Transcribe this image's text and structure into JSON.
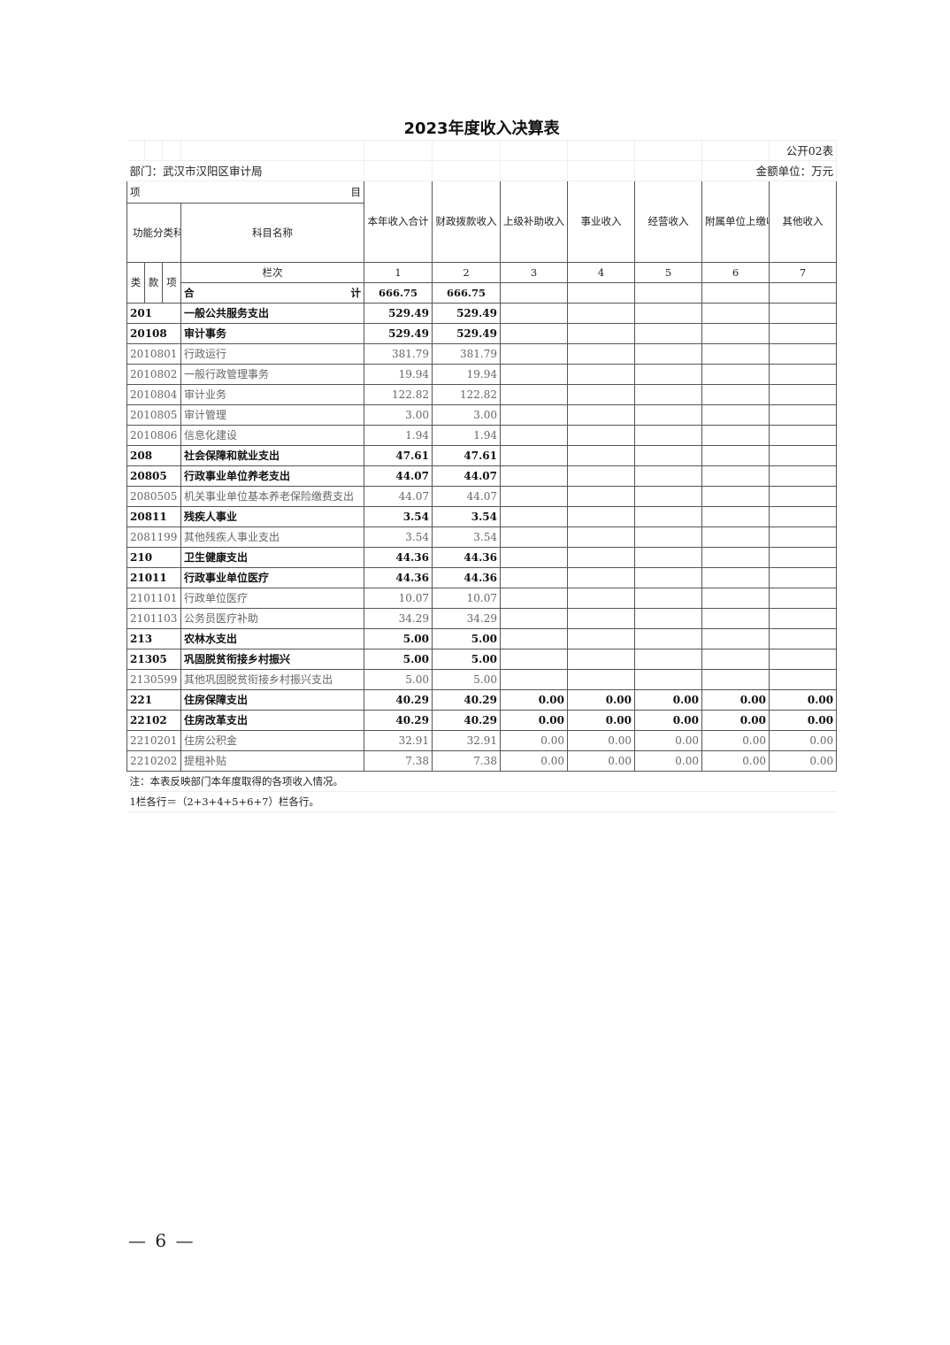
{
  "title": "2023年度收入决算表",
  "form_no": "公开02表",
  "department": "部门：武汉市汉阳区审计局",
  "unit": "金额单位：万元",
  "header": {
    "item_left": "项",
    "item_right": "目",
    "func_code": "功能分类科目编码",
    "subject_name": "科目名称",
    "columns": [
      "本年收入合计",
      "财政拨款收入",
      "上级补助收入",
      "事业收入",
      "经营收入",
      "附属单位上缴收入",
      "其他收入"
    ],
    "lei": "类",
    "kuan": "款",
    "xiang": "项",
    "lanci": "栏次",
    "col_numbers": [
      "1",
      "2",
      "3",
      "4",
      "5",
      "6",
      "7"
    ]
  },
  "total": {
    "left": "合",
    "right": "计",
    "values": [
      "666.75",
      "666.75",
      "",
      "",
      "",
      "",
      ""
    ]
  },
  "rows": [
    {
      "code": "201",
      "name": "一般公共服务支出",
      "level": "bold",
      "values": [
        "529.49",
        "529.49",
        "",
        "",
        "",
        "",
        ""
      ]
    },
    {
      "code": "20108",
      "name": "审计事务",
      "level": "bold",
      "values": [
        "529.49",
        "529.49",
        "",
        "",
        "",
        "",
        ""
      ]
    },
    {
      "code": "2010801",
      "name": "行政运行",
      "level": "item",
      "values": [
        "381.79",
        "381.79",
        "",
        "",
        "",
        "",
        ""
      ]
    },
    {
      "code": "2010802",
      "name": "一般行政管理事务",
      "level": "item",
      "values": [
        "19.94",
        "19.94",
        "",
        "",
        "",
        "",
        ""
      ]
    },
    {
      "code": "2010804",
      "name": "审计业务",
      "level": "item",
      "values": [
        "122.82",
        "122.82",
        "",
        "",
        "",
        "",
        ""
      ]
    },
    {
      "code": "2010805",
      "name": "审计管理",
      "level": "item",
      "values": [
        "3.00",
        "3.00",
        "",
        "",
        "",
        "",
        ""
      ]
    },
    {
      "code": "2010806",
      "name": "信息化建设",
      "level": "item",
      "values": [
        "1.94",
        "1.94",
        "",
        "",
        "",
        "",
        ""
      ]
    },
    {
      "code": "208",
      "name": "社会保障和就业支出",
      "level": "bold",
      "values": [
        "47.61",
        "47.61",
        "",
        "",
        "",
        "",
        ""
      ]
    },
    {
      "code": "20805",
      "name": "行政事业单位养老支出",
      "level": "bold",
      "values": [
        "44.07",
        "44.07",
        "",
        "",
        "",
        "",
        ""
      ]
    },
    {
      "code": "2080505",
      "name": "机关事业单位基本养老保险缴费支出",
      "level": "item",
      "values": [
        "44.07",
        "44.07",
        "",
        "",
        "",
        "",
        ""
      ]
    },
    {
      "code": "20811",
      "name": "残疾人事业",
      "level": "bold",
      "values": [
        "3.54",
        "3.54",
        "",
        "",
        "",
        "",
        ""
      ]
    },
    {
      "code": "2081199",
      "name": "其他残疾人事业支出",
      "level": "item",
      "values": [
        "3.54",
        "3.54",
        "",
        "",
        "",
        "",
        ""
      ]
    },
    {
      "code": "210",
      "name": "卫生健康支出",
      "level": "bold",
      "values": [
        "44.36",
        "44.36",
        "",
        "",
        "",
        "",
        ""
      ]
    },
    {
      "code": "21011",
      "name": "行政事业单位医疗",
      "level": "bold",
      "values": [
        "44.36",
        "44.36",
        "",
        "",
        "",
        "",
        ""
      ]
    },
    {
      "code": "2101101",
      "name": "行政单位医疗",
      "level": "item",
      "values": [
        "10.07",
        "10.07",
        "",
        "",
        "",
        "",
        ""
      ]
    },
    {
      "code": "2101103",
      "name": "公务员医疗补助",
      "level": "item",
      "values": [
        "34.29",
        "34.29",
        "",
        "",
        "",
        "",
        ""
      ]
    },
    {
      "code": "213",
      "name": "农林水支出",
      "level": "bold",
      "values": [
        "5.00",
        "5.00",
        "",
        "",
        "",
        "",
        ""
      ]
    },
    {
      "code": "21305",
      "name": "巩固脱贫衔接乡村振兴",
      "level": "bold",
      "values": [
        "5.00",
        "5.00",
        "",
        "",
        "",
        "",
        ""
      ]
    },
    {
      "code": "2130599",
      "name": "其他巩固脱贫衔接乡村振兴支出",
      "level": "item",
      "values": [
        "5.00",
        "5.00",
        "",
        "",
        "",
        "",
        ""
      ]
    },
    {
      "code": "221",
      "name": "住房保障支出",
      "level": "bold",
      "values": [
        "40.29",
        "40.29",
        "0.00",
        "0.00",
        "0.00",
        "0.00",
        "0.00"
      ]
    },
    {
      "code": "22102",
      "name": "住房改革支出",
      "level": "bold",
      "values": [
        "40.29",
        "40.29",
        "0.00",
        "0.00",
        "0.00",
        "0.00",
        "0.00"
      ]
    },
    {
      "code": "2210201",
      "name": "住房公积金",
      "level": "item",
      "values": [
        "32.91",
        "32.91",
        "0.00",
        "0.00",
        "0.00",
        "0.00",
        "0.00"
      ]
    },
    {
      "code": "2210202",
      "name": "提租补贴",
      "level": "item",
      "values": [
        "7.38",
        "7.38",
        "0.00",
        "0.00",
        "0.00",
        "0.00",
        "0.00"
      ]
    }
  ],
  "notes": [
    "注：本表反映部门本年度取得的各项收入情况。",
    "1栏各行＝（2+3+4+5+6+7）栏各行。"
  ],
  "page_number": "— 6 —"
}
